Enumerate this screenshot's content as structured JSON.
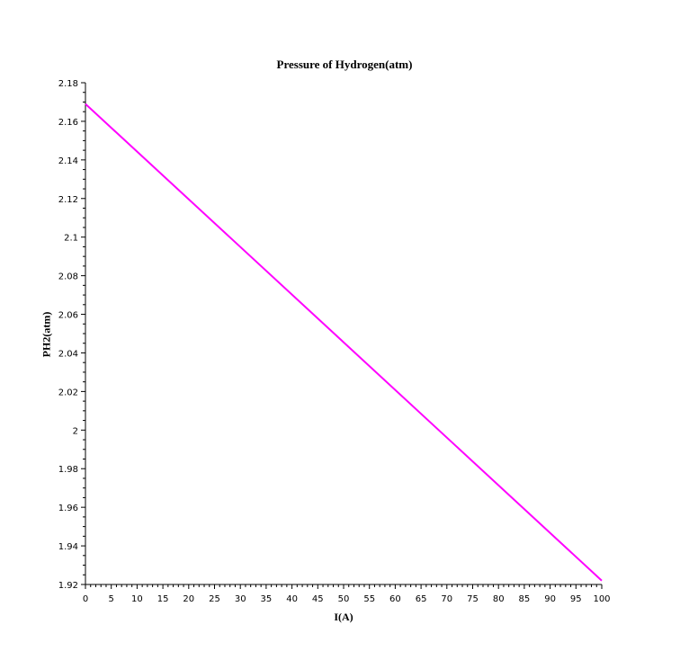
{
  "chart_data": {
    "type": "line",
    "title": "Pressure of Hydrogen(atm)",
    "xlabel": "I(A)",
    "ylabel": "PH2(atm)",
    "xlim": [
      0,
      100
    ],
    "ylim": [
      1.92,
      2.18
    ],
    "x_ticks": [
      "0",
      "5",
      "10",
      "15",
      "20",
      "25",
      "30",
      "35",
      "40",
      "45",
      "50",
      "55",
      "60",
      "65",
      "70",
      "75",
      "80",
      "85",
      "90",
      "95",
      "100"
    ],
    "y_ticks": [
      "1.92",
      "1.94",
      "1.96",
      "1.98",
      "2",
      "2.02",
      "2.04",
      "2.06",
      "2.08",
      "2.1",
      "2.12",
      "2.14",
      "2.16",
      "2.18"
    ],
    "grid": false,
    "series": [
      {
        "color": "#ff00ff",
        "x": [
          0,
          100
        ],
        "y": [
          2.169,
          1.922
        ]
      }
    ]
  }
}
